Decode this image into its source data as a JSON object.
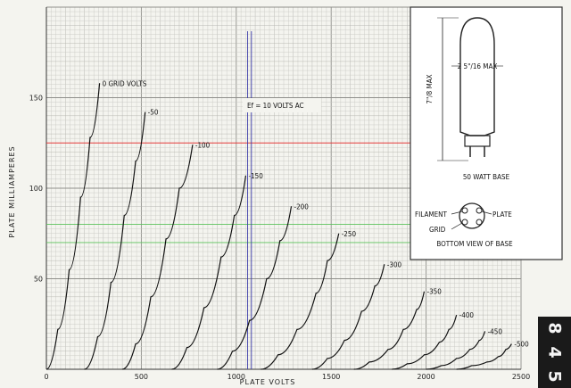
{
  "chart_data": {
    "type": "line",
    "xlabel": "PLATE VOLTS",
    "ylabel": "PLATE MILLIAMPERES",
    "xlim": [
      0,
      2500
    ],
    "ylim": [
      0,
      200
    ],
    "xticks": [
      0,
      500,
      1000,
      1500,
      2000,
      2500
    ],
    "yticks": [
      50,
      100,
      150
    ],
    "grid": true,
    "annotation": "Ef = 10 VOLTS AC",
    "series": [
      {
        "name": "0 GRID VOLTS",
        "x": [
          0,
          60,
          120,
          180,
          230,
          280
        ],
        "y": [
          0,
          22,
          55,
          95,
          128,
          158
        ]
      },
      {
        "name": "-50",
        "x": [
          200,
          270,
          340,
          410,
          470,
          520
        ],
        "y": [
          0,
          18,
          48,
          85,
          115,
          142
        ]
      },
      {
        "name": "-100",
        "x": [
          400,
          470,
          550,
          630,
          700,
          770
        ],
        "y": [
          0,
          14,
          40,
          72,
          100,
          124
        ]
      },
      {
        "name": "-150",
        "x": [
          660,
          740,
          830,
          920,
          990,
          1050
        ],
        "y": [
          0,
          12,
          34,
          62,
          85,
          107
        ]
      },
      {
        "name": "-200",
        "x": [
          900,
          980,
          1070,
          1160,
          1230,
          1290
        ],
        "y": [
          0,
          10,
          27,
          50,
          71,
          90
        ]
      },
      {
        "name": "-250",
        "x": [
          1130,
          1220,
          1320,
          1420,
          1480,
          1540
        ],
        "y": [
          0,
          8,
          22,
          42,
          60,
          75
        ]
      },
      {
        "name": "-300",
        "x": [
          1400,
          1480,
          1570,
          1660,
          1730,
          1780
        ],
        "y": [
          0,
          6,
          16,
          32,
          46,
          58
        ]
      },
      {
        "name": "-350",
        "x": [
          1620,
          1700,
          1800,
          1880,
          1950,
          1990
        ],
        "y": [
          0,
          4,
          11,
          22,
          33,
          43
        ]
      },
      {
        "name": "-400",
        "x": [
          1820,
          1900,
          1990,
          2070,
          2120,
          2160
        ],
        "y": [
          0,
          3,
          8,
          15,
          22,
          30
        ]
      },
      {
        "name": "-450",
        "x": [
          2000,
          2080,
          2160,
          2230,
          2280,
          2310
        ],
        "y": [
          0,
          2,
          6,
          11,
          16,
          21
        ]
      },
      {
        "name": "-500",
        "x": [
          2160,
          2240,
          2320,
          2380,
          2420,
          2450
        ],
        "y": [
          0,
          2,
          4,
          7,
          11,
          14
        ]
      }
    ]
  },
  "inset": {
    "max_height": "7\"/8 MAX",
    "max_width": "2 5\"/16 MAX",
    "base_label": "50 WATT BASE",
    "pin_filament": "FILAMENT",
    "pin_plate": "PLATE",
    "pin_grid": "GRID",
    "base_view": "BOTTOM VIEW OF BASE"
  },
  "tube_type": [
    "8",
    "4",
    "5"
  ],
  "colors": {
    "paper": "#f4f4ef",
    "grid_minor": "#c9c9c4",
    "grid_major": "#8f8f8b",
    "curve": "#111111",
    "red_line": "#e33a3a",
    "green_line": "#5ec45e",
    "blue_line": "#3a3aa8"
  }
}
